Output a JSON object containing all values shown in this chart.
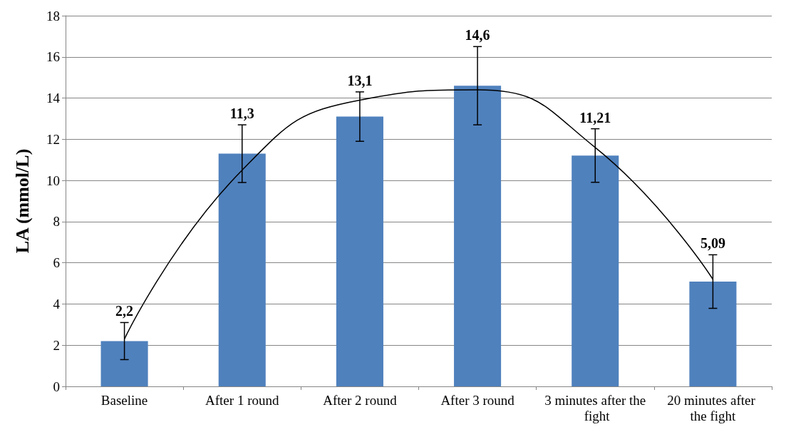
{
  "chart_data": {
    "type": "bar",
    "ylabel": "LA (mmol/L)",
    "categories": [
      "Baseline",
      "After 1 round",
      "After 2 round",
      "After 3 round",
      "3 minutes after the fight",
      "20 minutes after the fight"
    ],
    "series": [
      {
        "color": "#4f81bd",
        "values": [
          2.2,
          11.3,
          13.1,
          14.6,
          11.21,
          5.09
        ],
        "errors": [
          0.9,
          1.4,
          1.2,
          1.9,
          1.3,
          1.3
        ],
        "value_labels": [
          "2,2",
          "11,3",
          "13,1",
          "14,6",
          "11,21",
          "5,09"
        ]
      },
      {
        "type": "line",
        "color": "#000000",
        "values": [
          2.3,
          10.5,
          13.9,
          14.4,
          11.6,
          5.2
        ],
        "marker": "none",
        "line_style": "solid"
      }
    ],
    "ylim": [
      0,
      18
    ],
    "yticks": [
      0,
      2,
      4,
      6,
      8,
      10,
      12,
      14,
      16,
      18
    ],
    "grid": "y"
  }
}
